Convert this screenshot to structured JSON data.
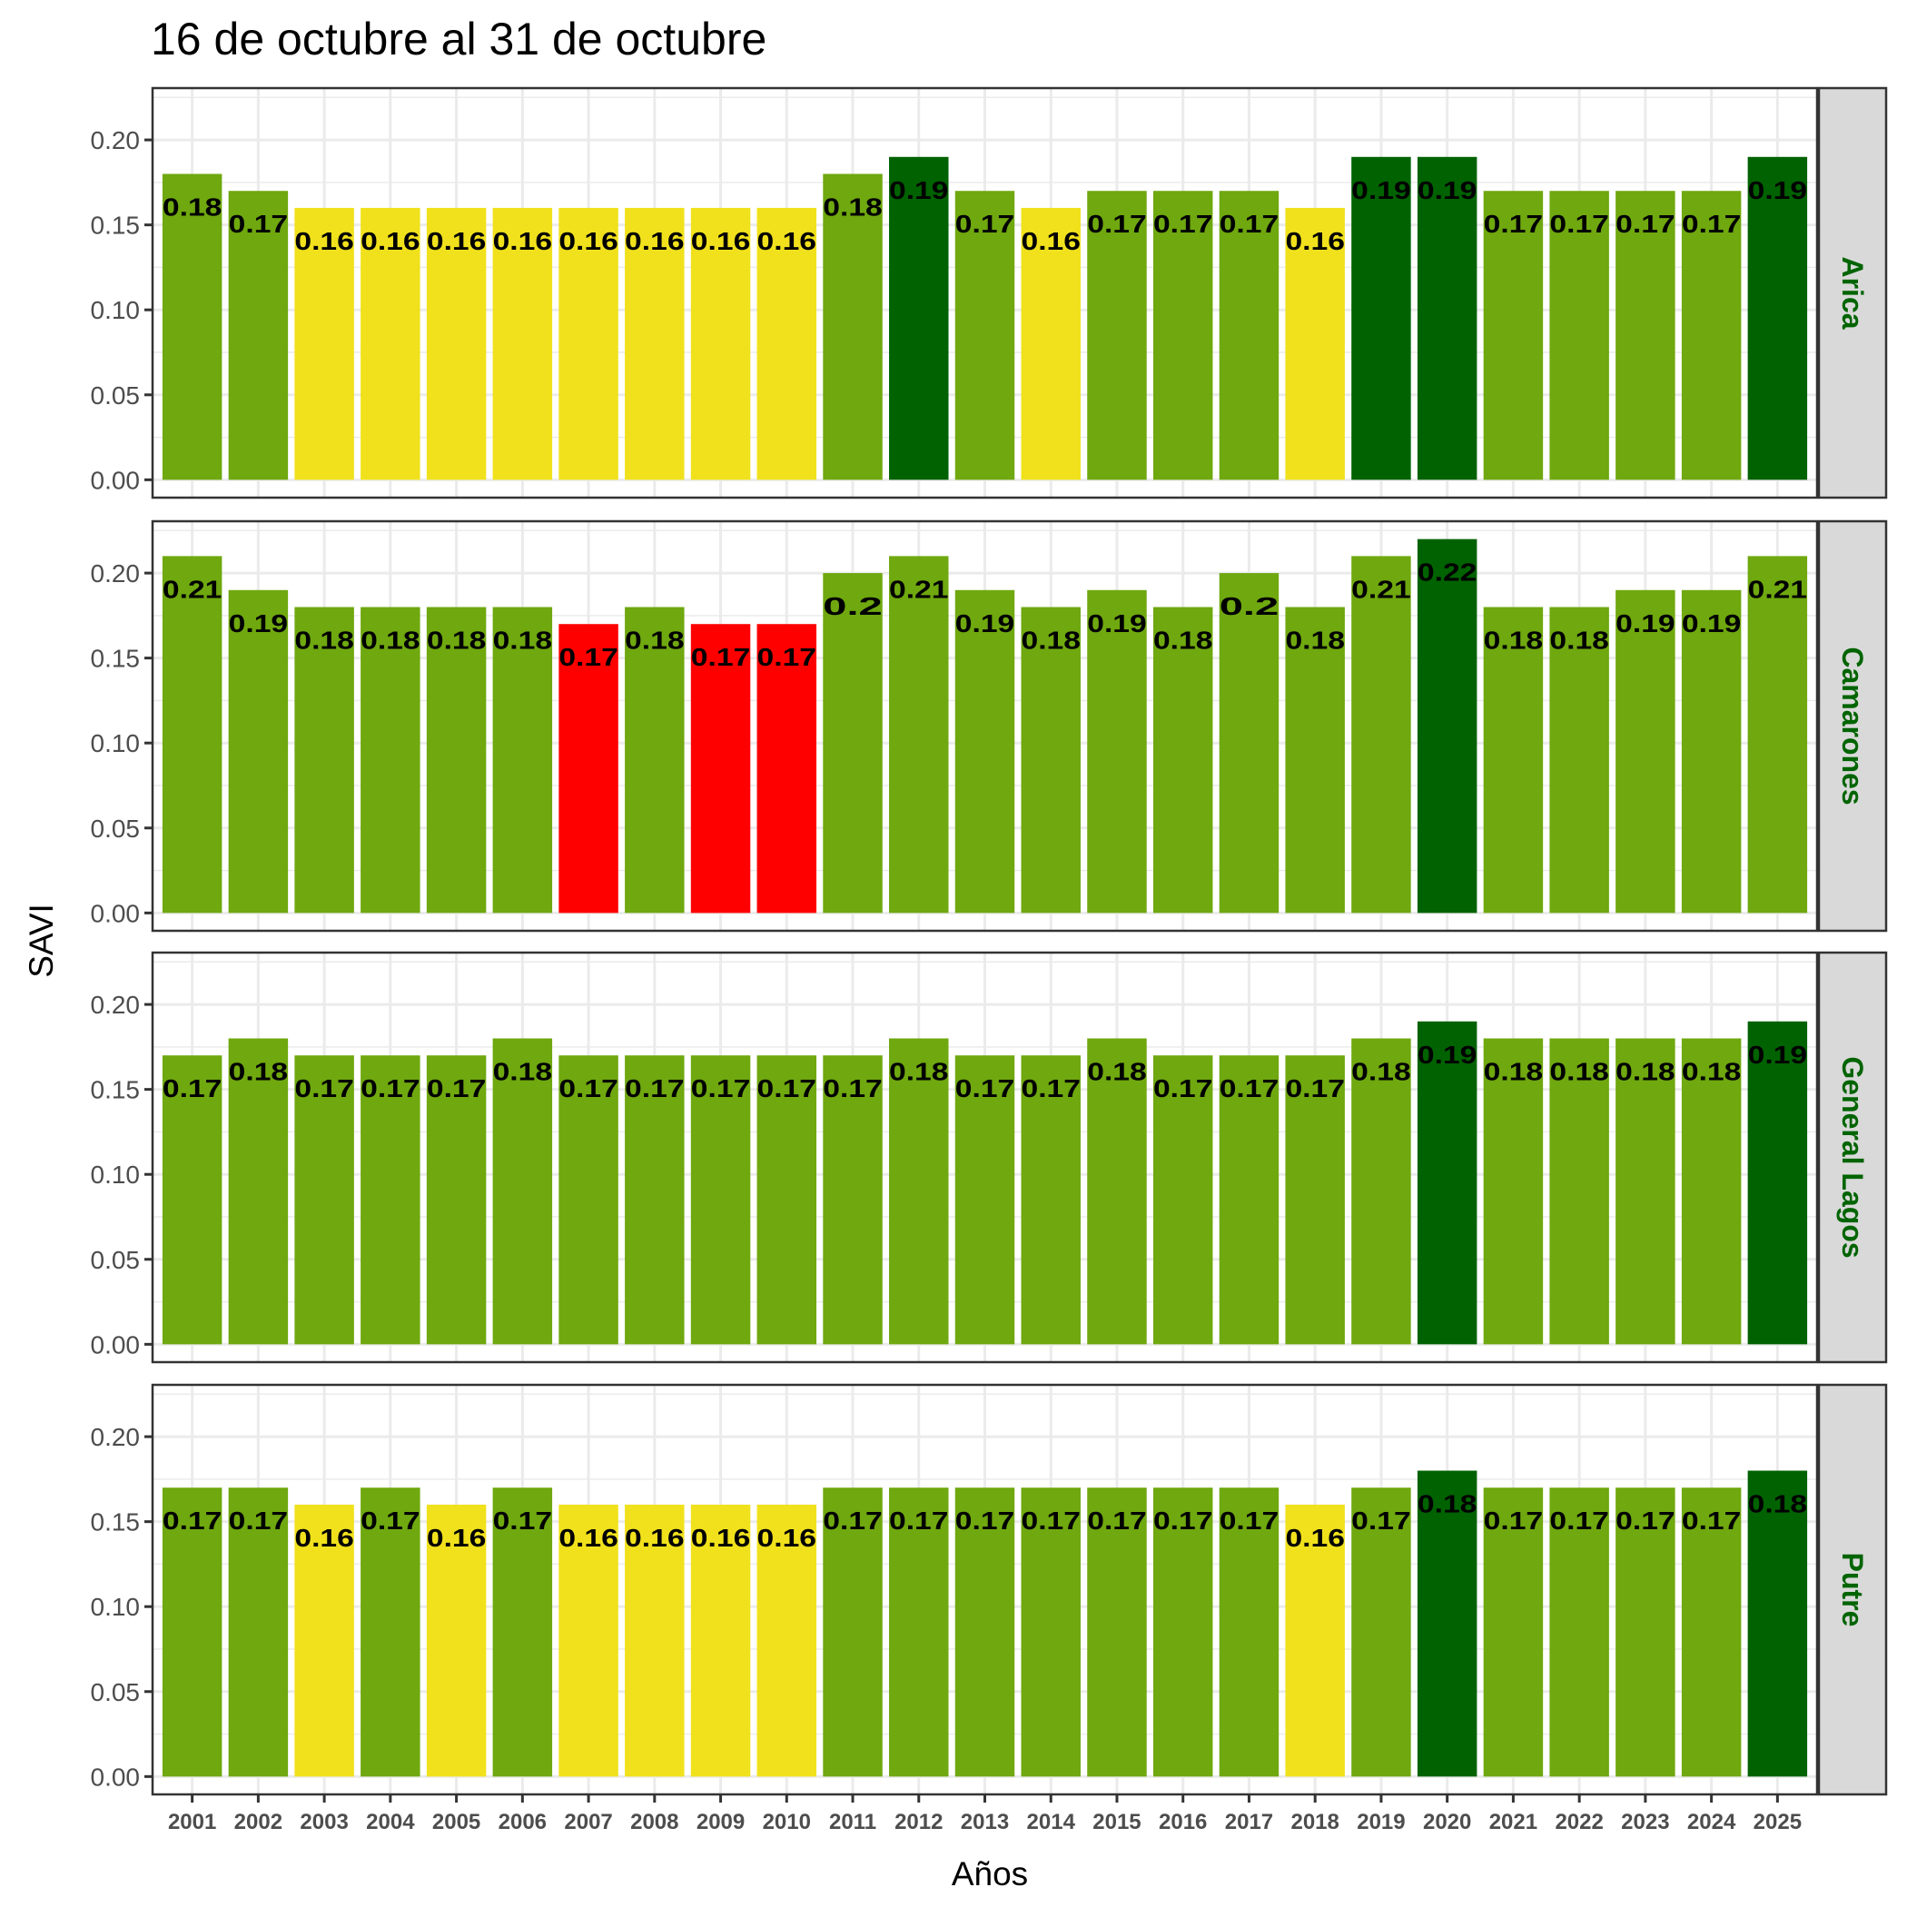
{
  "chart_data": {
    "type": "bar",
    "title": "16 de octubre al 31 de octubre",
    "xlabel": "Años",
    "ylabel": "SAVI",
    "ylim": [
      0,
      0.23
    ],
    "yticks": [
      "0.00",
      "0.05",
      "0.10",
      "0.15",
      "0.20"
    ],
    "ytick_values": [
      0,
      0.05,
      0.1,
      0.15,
      0.2
    ],
    "grid": true,
    "facet": "rows",
    "categories": [
      "2001",
      "2002",
      "2003",
      "2004",
      "2005",
      "2006",
      "2007",
      "2008",
      "2009",
      "2010",
      "2011",
      "2012",
      "2013",
      "2014",
      "2015",
      "2016",
      "2017",
      "2018",
      "2019",
      "2020",
      "2021",
      "2022",
      "2023",
      "2024",
      "2025"
    ],
    "color_classes": {
      "red": "#FF0000",
      "yellow": "#F0E11C",
      "green": "#6FA80F",
      "dark_green": "#006200"
    },
    "strip_text_color": "#006400",
    "series": [
      {
        "name": "Arica",
        "values": [
          0.18,
          0.17,
          0.16,
          0.16,
          0.16,
          0.16,
          0.16,
          0.16,
          0.16,
          0.16,
          0.18,
          0.19,
          0.17,
          0.16,
          0.17,
          0.17,
          0.17,
          0.16,
          0.19,
          0.19,
          0.17,
          0.17,
          0.17,
          0.17,
          0.19
        ],
        "labels": [
          "0.18",
          "0.17",
          "0.16",
          "0.16",
          "0.16",
          "0.16",
          "0.16",
          "0.16",
          "0.16",
          "0.16",
          "0.18",
          "0.19",
          "0.17",
          "0.16",
          "0.17",
          "0.17",
          "0.17",
          "0.16",
          "0.19",
          "0.19",
          "0.17",
          "0.17",
          "0.17",
          "0.17",
          "0.19"
        ],
        "colors": [
          "green",
          "green",
          "yellow",
          "yellow",
          "yellow",
          "yellow",
          "yellow",
          "yellow",
          "yellow",
          "yellow",
          "green",
          "dark_green",
          "green",
          "yellow",
          "green",
          "green",
          "green",
          "yellow",
          "dark_green",
          "dark_green",
          "green",
          "green",
          "green",
          "green",
          "dark_green"
        ]
      },
      {
        "name": "Camarones",
        "values": [
          0.21,
          0.19,
          0.18,
          0.18,
          0.18,
          0.18,
          0.17,
          0.18,
          0.17,
          0.17,
          0.2,
          0.21,
          0.19,
          0.18,
          0.19,
          0.18,
          0.2,
          0.18,
          0.21,
          0.22,
          0.18,
          0.18,
          0.19,
          0.19,
          0.21
        ],
        "labels": [
          "0.21",
          "0.19",
          "0.18",
          "0.18",
          "0.18",
          "0.18",
          "0.17",
          "0.18",
          "0.17",
          "0.17",
          "0.2",
          "0.21",
          "0.19",
          "0.18",
          "0.19",
          "0.18",
          "0.2",
          "0.18",
          "0.21",
          "0.22",
          "0.18",
          "0.18",
          "0.19",
          "0.19",
          "0.21"
        ],
        "colors": [
          "green",
          "green",
          "green",
          "green",
          "green",
          "green",
          "red",
          "green",
          "red",
          "red",
          "green",
          "green",
          "green",
          "green",
          "green",
          "green",
          "green",
          "green",
          "green",
          "dark_green",
          "green",
          "green",
          "green",
          "green",
          "green"
        ]
      },
      {
        "name": "General Lagos",
        "values": [
          0.17,
          0.18,
          0.17,
          0.17,
          0.17,
          0.18,
          0.17,
          0.17,
          0.17,
          0.17,
          0.17,
          0.18,
          0.17,
          0.17,
          0.18,
          0.17,
          0.17,
          0.17,
          0.18,
          0.19,
          0.18,
          0.18,
          0.18,
          0.18,
          0.19
        ],
        "labels": [
          "0.17",
          "0.18",
          "0.17",
          "0.17",
          "0.17",
          "0.18",
          "0.17",
          "0.17",
          "0.17",
          "0.17",
          "0.17",
          "0.18",
          "0.17",
          "0.17",
          "0.18",
          "0.17",
          "0.17",
          "0.17",
          "0.18",
          "0.19",
          "0.18",
          "0.18",
          "0.18",
          "0.18",
          "0.19"
        ],
        "colors": [
          "green",
          "green",
          "green",
          "green",
          "green",
          "green",
          "green",
          "green",
          "green",
          "green",
          "green",
          "green",
          "green",
          "green",
          "green",
          "green",
          "green",
          "green",
          "green",
          "dark_green",
          "green",
          "green",
          "green",
          "green",
          "dark_green"
        ]
      },
      {
        "name": "Putre",
        "values": [
          0.17,
          0.17,
          0.16,
          0.17,
          0.16,
          0.17,
          0.16,
          0.16,
          0.16,
          0.16,
          0.17,
          0.17,
          0.17,
          0.17,
          0.17,
          0.17,
          0.17,
          0.16,
          0.17,
          0.18,
          0.17,
          0.17,
          0.17,
          0.17,
          0.18
        ],
        "labels": [
          "0.17",
          "0.17",
          "0.16",
          "0.17",
          "0.16",
          "0.17",
          "0.16",
          "0.16",
          "0.16",
          "0.16",
          "0.17",
          "0.17",
          "0.17",
          "0.17",
          "0.17",
          "0.17",
          "0.17",
          "0.16",
          "0.17",
          "0.18",
          "0.17",
          "0.17",
          "0.17",
          "0.17",
          "0.18"
        ],
        "colors": [
          "green",
          "green",
          "yellow",
          "green",
          "yellow",
          "green",
          "yellow",
          "yellow",
          "yellow",
          "yellow",
          "green",
          "green",
          "green",
          "green",
          "green",
          "green",
          "green",
          "yellow",
          "green",
          "dark_green",
          "green",
          "green",
          "green",
          "green",
          "dark_green"
        ]
      }
    ]
  }
}
